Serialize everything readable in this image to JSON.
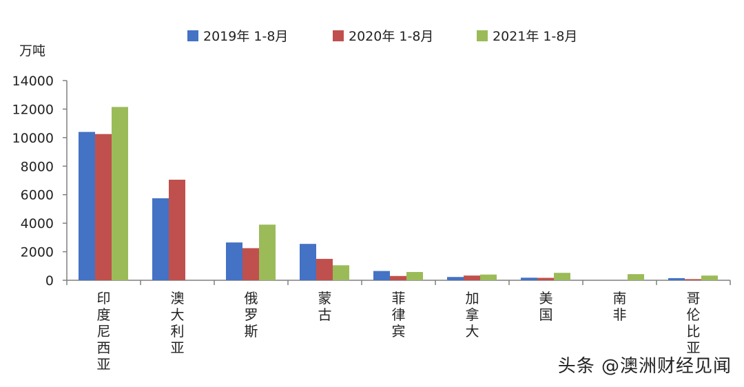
{
  "chart_data": {
    "type": "bar",
    "ylabel": "万吨",
    "ylim": [
      0,
      14000
    ],
    "yticks": [
      0,
      2000,
      4000,
      6000,
      8000,
      10000,
      12000,
      14000
    ],
    "categories": [
      "印度尼西亚",
      "澳大利亚",
      "俄罗斯",
      "蒙古",
      "菲律宾",
      "加拿大",
      "美国",
      "南非",
      "哥伦比亚"
    ],
    "series": [
      {
        "name": "2019年 1-8月",
        "color": "#4472c4",
        "values": [
          10400,
          5750,
          2650,
          2550,
          650,
          230,
          180,
          0,
          150
        ]
      },
      {
        "name": "2020年 1-8月",
        "color": "#c0504d",
        "values": [
          10250,
          7050,
          2250,
          1500,
          300,
          330,
          170,
          0,
          80
        ]
      },
      {
        "name": "2021年 1-8月",
        "color": "#9bbb59",
        "values": [
          12150,
          0,
          3900,
          1050,
          580,
          400,
          520,
          430,
          330
        ]
      }
    ],
    "grid": false,
    "legend_position": "top"
  },
  "watermark": "头条 @澳洲财经见闻"
}
